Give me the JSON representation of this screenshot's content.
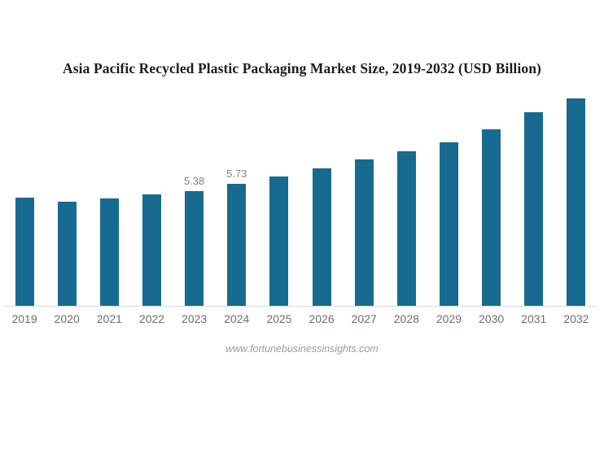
{
  "page": {
    "title": "Asia Pacific Recycled Plastic Packaging Market Size, 2019-2032 (USD Billion)",
    "source": "www.fortunebusinessinsights.com"
  },
  "colors": {
    "background": "#ffffff",
    "bar": "#176b91",
    "axis_line": "#d9d9d9",
    "axis_label": "#6e6e6e",
    "value_label": "#828282",
    "title": "#1c1c1c",
    "source": "#9c9c9c"
  },
  "chart_data": {
    "type": "bar",
    "title": "Asia Pacific Recycled Plastic Packaging Market Size, 2019-2032 (USD Billion)",
    "categories": [
      "2019",
      "2020",
      "2021",
      "2022",
      "2023",
      "2024",
      "2025",
      "2026",
      "2027",
      "2028",
      "2029",
      "2030",
      "2031",
      "2032"
    ],
    "values": [
      5.08,
      4.87,
      5.04,
      5.22,
      5.38,
      5.73,
      6.05,
      6.45,
      6.84,
      7.25,
      7.64,
      8.27,
      9.05,
      9.7
    ],
    "data_labels": {
      "2023": "5.38",
      "2024": "5.73"
    },
    "xlabel": "",
    "ylabel": "",
    "ylim": [
      0,
      10.5
    ],
    "grid": false,
    "legend": false,
    "bar_color": "#176b91",
    "annotations": [
      "www.fortunebusinessinsights.com"
    ]
  }
}
